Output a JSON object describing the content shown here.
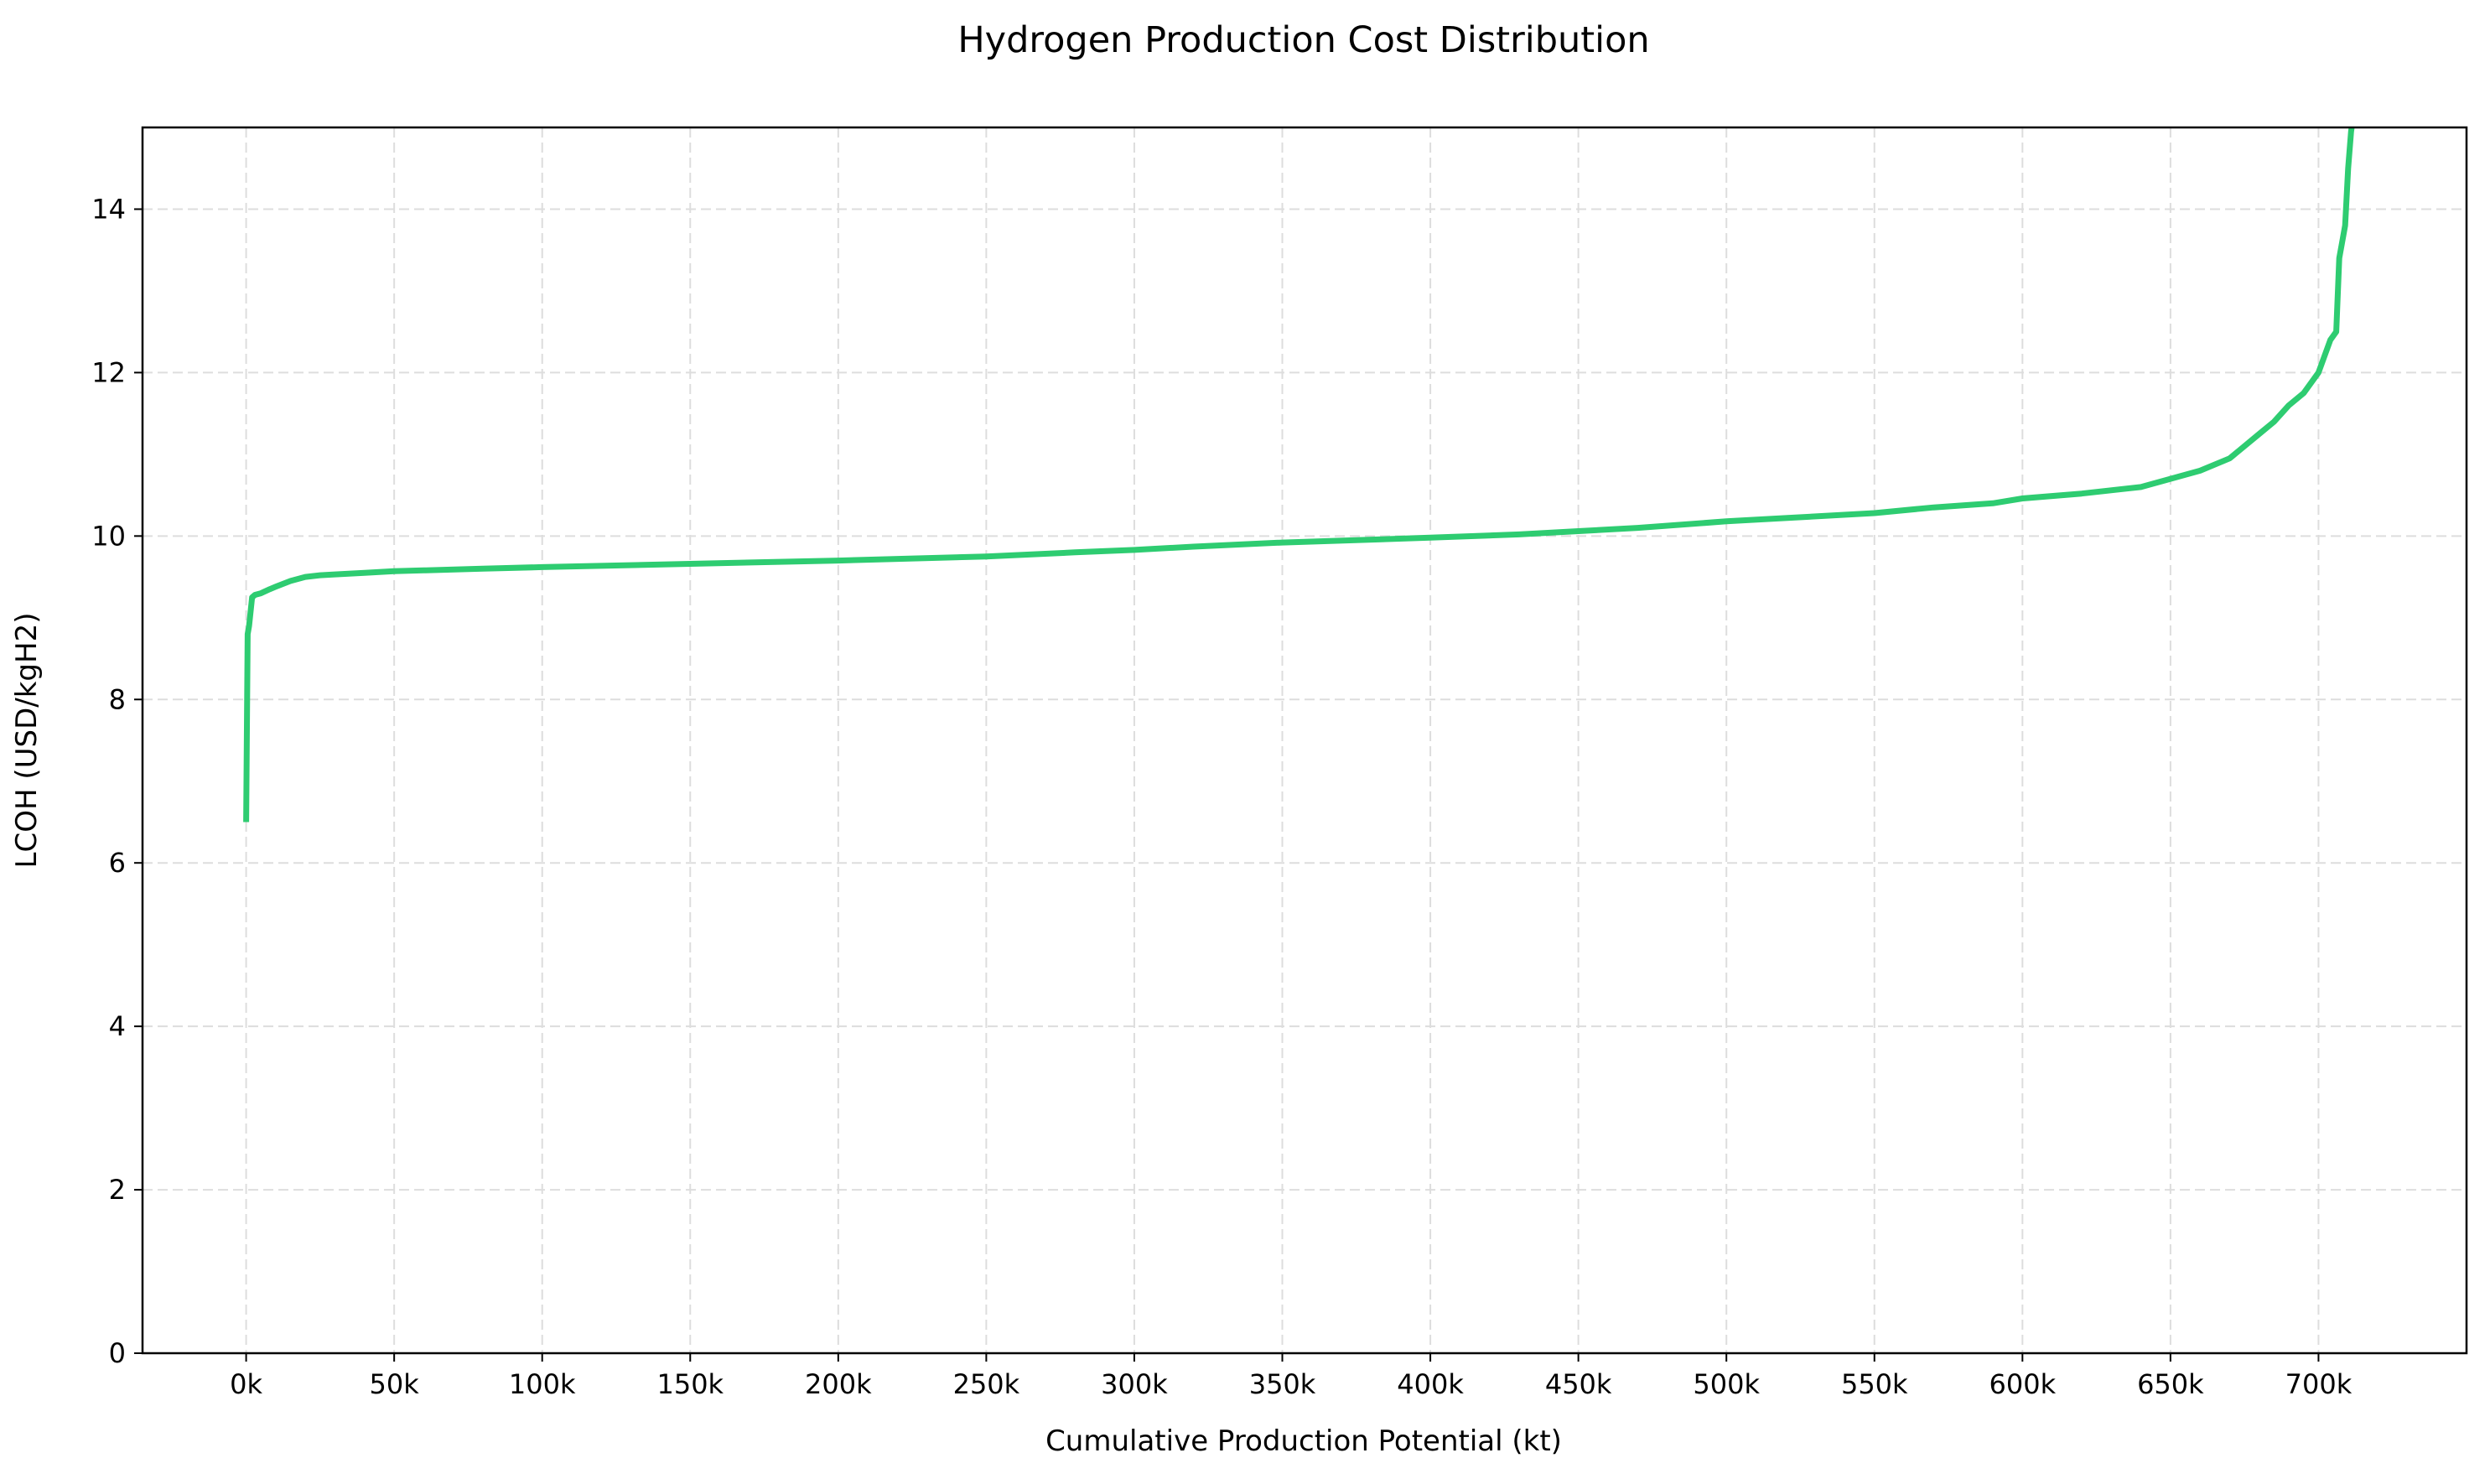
{
  "chart_data": {
    "type": "line",
    "title": "Hydrogen Production Cost Distribution",
    "xlabel": "Cumulative Production Potential (kt)",
    "ylabel": "LCOH (USD/kgH2)",
    "xlim": [
      -35000,
      750000
    ],
    "ylim": [
      0,
      15
    ],
    "x_ticks": [
      0,
      50000,
      100000,
      150000,
      200000,
      250000,
      300000,
      350000,
      400000,
      450000,
      500000,
      550000,
      600000,
      650000,
      700000
    ],
    "x_tick_labels": [
      "0k",
      "50k",
      "100k",
      "150k",
      "200k",
      "250k",
      "300k",
      "350k",
      "400k",
      "450k",
      "500k",
      "550k",
      "600k",
      "650k",
      "700k"
    ],
    "y_ticks": [
      0,
      2,
      4,
      6,
      8,
      10,
      12,
      14
    ],
    "y_tick_labels": [
      "0",
      "2",
      "4",
      "6",
      "8",
      "10",
      "12",
      "14"
    ],
    "grid": true,
    "line_color": "#2ecc71",
    "series": [
      {
        "x": [
          0,
          500,
          1000,
          2000,
          3000,
          5000,
          8000,
          10000,
          15000,
          20000,
          25000,
          30000,
          40000,
          50000,
          60000,
          80000,
          100000,
          150000,
          200000,
          250000,
          280000,
          300000,
          320000,
          350000,
          400000,
          430000,
          450000,
          470000,
          500000,
          520000,
          550000,
          570000,
          590000,
          600000,
          620000,
          640000,
          650000,
          660000,
          670000,
          675000,
          680000,
          685000,
          690000,
          695000,
          700000,
          702000,
          704000,
          706000,
          707000,
          708000,
          709000,
          710000,
          711000,
          712000,
          713000
        ],
        "y": [
          6.5,
          8.8,
          8.9,
          9.25,
          9.28,
          9.3,
          9.35,
          9.38,
          9.45,
          9.5,
          9.52,
          9.53,
          9.55,
          9.57,
          9.58,
          9.6,
          9.62,
          9.66,
          9.7,
          9.75,
          9.8,
          9.83,
          9.87,
          9.92,
          9.98,
          10.02,
          10.06,
          10.1,
          10.18,
          10.22,
          10.28,
          10.35,
          10.4,
          10.46,
          10.52,
          10.6,
          10.7,
          10.8,
          10.95,
          11.1,
          11.25,
          11.4,
          11.6,
          11.75,
          12.0,
          12.2,
          12.4,
          12.5,
          13.4,
          13.6,
          13.8,
          14.5,
          14.95,
          15.2,
          15.6
        ]
      }
    ]
  }
}
